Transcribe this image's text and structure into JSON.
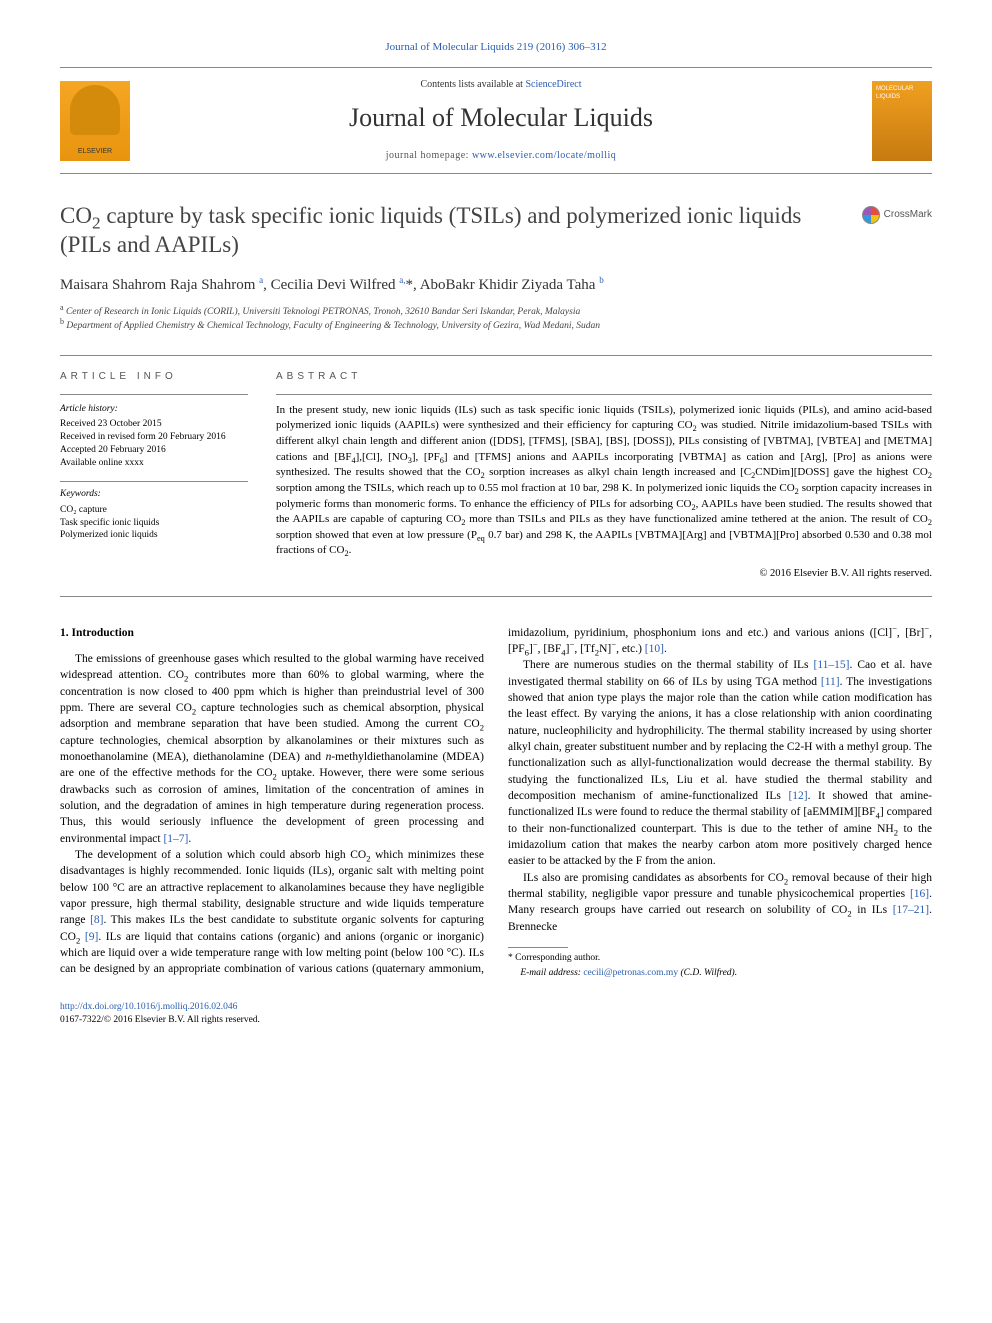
{
  "top_link": "Journal of Molecular Liquids 219 (2016) 306–312",
  "header": {
    "publisher": "ELSEVIER",
    "contents_prefix": "Contents lists available at ",
    "contents_link": "ScienceDirect",
    "journal_name": "Journal of Molecular Liquids",
    "homepage_prefix": "journal homepage: ",
    "homepage_url": "www.elsevier.com/locate/molliq",
    "cover_text": "MOLECULAR LIQUIDS"
  },
  "crossmark": "CrossMark",
  "title_html": "CO<sub>2</sub> capture by task specific ionic liquids (TSILs) and polymerized ionic liquids (PILs and AAPILs)",
  "authors_html": "Maisara Shahrom Raja Shahrom <sup>a</sup>, Cecilia Devi Wilfred <sup>a,</sup>*, AboBakr Khidir Ziyada Taha <sup>b</sup>",
  "affiliations": {
    "a": "Center of Research in Ionic Liquids (CORIL), Universiti Teknologi PETRONAS, Tronoh, 32610 Bandar Seri Iskandar, Perak, Malaysia",
    "b": "Department of Applied Chemistry & Chemical Technology, Faculty of Engineering & Technology, University of Gezira, Wad Medani, Sudan"
  },
  "article_info": {
    "heading": "article info",
    "history_label": "Article history:",
    "received": "Received 23 October 2015",
    "revised": "Received in revised form 20 February 2016",
    "accepted": "Accepted 20 February 2016",
    "online": "Available online xxxx",
    "keywords_label": "Keywords:",
    "keywords": [
      "CO₂ capture",
      "Task specific ionic liquids",
      "Polymerized ionic liquids"
    ]
  },
  "abstract": {
    "heading": "abstract",
    "text_html": "In the present study, new ionic liquids (ILs) such as task specific ionic liquids (TSILs), polymerized ionic liquids (PILs), and amino acid-based polymerized ionic liquids (AAPILs) were synthesized and their efficiency for capturing CO<sub>2</sub> was studied. Nitrile imidazolium-based TSILs with different alkyl chain length and different anion ([DDS], [TFMS], [SBA], [BS], [DOSS]), PILs consisting of [VBTMA], [VBTEA] and [METMA] cations and [BF<sub>4</sub>],[Cl], [NO<sub>3</sub>], [PF<sub>6</sub>] and [TFMS] anions and AAPILs incorporating [VBTMA] as cation and [Arg], [Pro] as anions were synthesized. The results showed that the CO<sub>2</sub> sorption increases as alkyl chain length increased and [C<sub>2</sub>CNDim][DOSS] gave the highest CO<sub>2</sub> sorption among the TSILs, which reach up to 0.55 mol fraction at 10 bar, 298 K. In polymerized ionic liquids the CO<sub>2</sub> sorption capacity increases in polymeric forms than monomeric forms. To enhance the efficiency of PILs for adsorbing CO<sub>2</sub>, AAPILs have been studied. The results showed that the AAPILs are capable of capturing CO<sub>2</sub> more than TSILs and PILs as they have functionalized amine tethered at the anion. The result of CO<sub>2</sub> sorption showed that even at low pressure (P<sub>eq</sub> 0.7 bar) and 298 K, the AAPILs [VBTMA][Arg] and [VBTMA][Pro] absorbed 0.530 and 0.38 mol fractions of CO<sub>2</sub>.",
    "copyright": "© 2016 Elsevier B.V. All rights reserved."
  },
  "section1": {
    "heading": "1. Introduction",
    "p1_html": "The emissions of greenhouse gases which resulted to the global warming have received widespread attention. CO<sub>2</sub> contributes more than 60% to global warming, where the concentration is now closed to 400 ppm which is higher than preindustrial level of 300 ppm. There are several CO<sub>2</sub> capture technologies such as chemical absorption, physical adsorption and membrane separation that have been studied. Among the current CO<sub>2</sub> capture technologies, chemical absorption by alkanolamines or their mixtures such as monoethanolamine (MEA), diethanolamine (DEA) and <i>n</i>-methyldiethanolamine (MDEA) are one of the effective methods for the CO<sub>2</sub> uptake. However, there were some serious drawbacks such as corrosion of amines, limitation of the concentration of amines in solution, and the degradation of amines in high temperature during regeneration process. Thus, this would seriously influence the development of green processing and environmental impact <span class=\"ref-link\">[1–7]</span>.",
    "p2_html": "The development of a solution which could absorb high CO<sub>2</sub> which minimizes these disadvantages is highly recommended. Ionic liquids (ILs), organic salt with melting point below 100 °C are an attractive replacement to alkanolamines because they have negligible vapor pressure, high thermal stability, designable structure and wide liquids temperature range <span class=\"ref-link\">[8]</span>. This makes ILs the best candidate to substitute organic solvents for capturing CO<sub>2</sub> <span class=\"ref-link\">[9]</span>. ILs are liquid that contains cations (organic) and anions (organic or inorganic) which are liquid over a wide temperature range with low melting point (below 100 °C). ILs can be designed by an appropriate combination of various cations (quaternary ammonium, imidazolium, pyridinium, phosphonium ions and etc.) and various anions ([Cl]<sup>−</sup>, [Br]<sup>−</sup>, [PF<sub>6</sub>]<sup>−</sup>, [BF<sub>4</sub>]<sup>−</sup>, [Tf<sub>2</sub>N]<sup>−</sup>, etc.) <span class=\"ref-link\">[10]</span>.",
    "p3_html": "There are numerous studies on the thermal stability of ILs <span class=\"ref-link\">[11–15]</span>. Cao et al. have investigated thermal stability on 66 of ILs by using TGA method <span class=\"ref-link\">[11]</span>. The investigations showed that anion type plays the major role than the cation while cation modification has the least effect. By varying the anions, it has a close relationship with anion coordinating nature, nucleophilicity and hydrophilicity. The thermal stability increased by using shorter alkyl chain, greater substituent number and by replacing the C2-H with a methyl group. The functionalization such as allyl-functionalization would decrease the thermal stability. By studying the functionalized ILs, Liu et al. have studied the thermal stability and decomposition mechanism of amine-functionalized ILs <span class=\"ref-link\">[12]</span>. It showed that amine-functionalized ILs were found to reduce the thermal stability of [aEMMIM][BF<sub>4</sub>] compared to their non-functionalized counterpart. This is due to the tether of amine NH<sub>2</sub> to the imidazolium cation that makes the nearby carbon atom more positively charged hence easier to be attacked by the F from the anion.",
    "p4_html": "ILs also are promising candidates as absorbents for CO<sub>2</sub> removal because of their high thermal stability, negligible vapor pressure and tunable physicochemical properties <span class=\"ref-link\">[16]</span>. Many research groups have carried out research on solubility of CO<sub>2</sub> in ILs <span class=\"ref-link\">[17–21]</span>. Brennecke"
  },
  "footnote": {
    "corr_label": "* Corresponding author.",
    "email_label": "E-mail address:",
    "email": "cecili@petronas.com.my",
    "email_suffix": "(C.D. Wilfred)."
  },
  "footer": {
    "doi": "http://dx.doi.org/10.1016/j.molliq.2016.02.046",
    "issn_line": "0167-7322/© 2016 Elsevier B.V. All rights reserved."
  },
  "colors": {
    "link": "#2a5db0",
    "text": "#000000",
    "heading_gray": "#555555",
    "rule": "#888888",
    "elsevier_orange": "#e8940f"
  }
}
